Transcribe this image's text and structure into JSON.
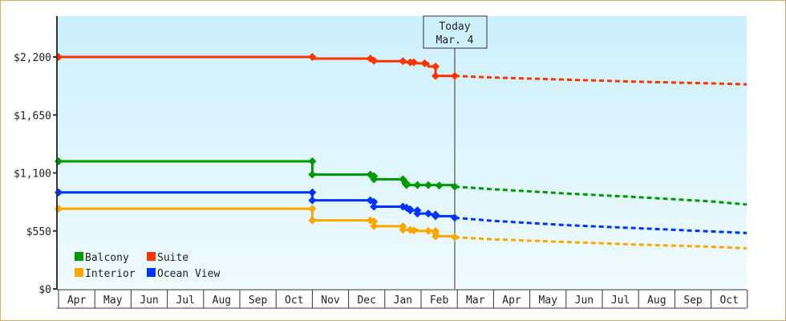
{
  "chart_data": {
    "type": "line",
    "title": "",
    "xlabel": "",
    "ylabel": "",
    "ylim": [
      0,
      2420
    ],
    "yticks": [
      {
        "value": 0,
        "label": "$0"
      },
      {
        "value": 550,
        "label": "$550"
      },
      {
        "value": 1100,
        "label": "$1,100"
      },
      {
        "value": 1650,
        "label": "$1,650"
      },
      {
        "value": 2200,
        "label": "$2,200"
      }
    ],
    "x_months": [
      "Apr",
      "May",
      "Jun",
      "Jul",
      "Aug",
      "Sep",
      "Oct",
      "Nov",
      "Dec",
      "Jan",
      "Feb",
      "Mar",
      "Apr",
      "May",
      "Jun",
      "Jul",
      "Aug",
      "Sep",
      "Oct"
    ],
    "today_marker": {
      "line1": "Today",
      "line2": "Mar. 4",
      "x_month_index": 10.7
    },
    "legend": [
      {
        "name": "Balcony",
        "color": "#009900"
      },
      {
        "name": "Suite",
        "color": "#ff3300"
      },
      {
        "name": "Interior",
        "color": "#ffa500"
      },
      {
        "name": "Ocean View",
        "color": "#0033ff"
      }
    ],
    "series": [
      {
        "name": "Suite",
        "color": "#ff3300",
        "history": [
          [
            0,
            2200
          ],
          [
            7.0,
            2200
          ],
          [
            7.0,
            2185
          ],
          [
            8.6,
            2185
          ],
          [
            8.6,
            2165
          ],
          [
            8.7,
            2165
          ],
          [
            8.7,
            2160
          ],
          [
            9.5,
            2160
          ],
          [
            9.5,
            2150
          ],
          [
            9.8,
            2150
          ],
          [
            9.8,
            2140
          ],
          [
            10.2,
            2140
          ],
          [
            10.2,
            2110
          ],
          [
            10.4,
            2110
          ],
          [
            10.4,
            2020
          ],
          [
            10.7,
            2020
          ]
        ],
        "points": [
          [
            0,
            2200
          ],
          [
            7.0,
            2200
          ],
          [
            8.6,
            2185
          ],
          [
            8.7,
            2165
          ],
          [
            9.5,
            2160
          ],
          [
            9.7,
            2150
          ],
          [
            9.8,
            2150
          ],
          [
            10.1,
            2140
          ],
          [
            10.4,
            2110
          ],
          [
            10.4,
            2020
          ],
          [
            10.7,
            2020
          ]
        ],
        "projection": [
          [
            10.7,
            2020
          ],
          [
            12,
            2005
          ],
          [
            14,
            1985
          ],
          [
            16,
            1965
          ],
          [
            18,
            1950
          ],
          [
            19.1,
            1940
          ]
        ]
      },
      {
        "name": "Balcony",
        "color": "#009900",
        "history": [
          [
            0,
            1210
          ],
          [
            7.0,
            1210
          ],
          [
            7.0,
            1085
          ],
          [
            8.6,
            1085
          ],
          [
            8.6,
            1070
          ],
          [
            8.7,
            1070
          ],
          [
            8.7,
            1040
          ],
          [
            9.5,
            1040
          ],
          [
            9.5,
            1000
          ],
          [
            9.6,
            1000
          ],
          [
            9.6,
            985
          ],
          [
            10.7,
            985
          ],
          [
            10.7,
            970
          ]
        ],
        "points": [
          [
            0,
            1210
          ],
          [
            7.0,
            1210
          ],
          [
            7.0,
            1085
          ],
          [
            8.6,
            1085
          ],
          [
            8.7,
            1070
          ],
          [
            8.7,
            1040
          ],
          [
            9.5,
            1040
          ],
          [
            9.6,
            1000
          ],
          [
            9.6,
            985
          ],
          [
            9.9,
            985
          ],
          [
            10.2,
            985
          ],
          [
            10.5,
            980
          ],
          [
            10.7,
            970
          ]
        ],
        "projection": [
          [
            10.7,
            970
          ],
          [
            12,
            945
          ],
          [
            14,
            905
          ],
          [
            16,
            870
          ],
          [
            18,
            830
          ],
          [
            19.1,
            800
          ]
        ]
      },
      {
        "name": "Ocean View",
        "color": "#0033ff",
        "history": [
          [
            0,
            915
          ],
          [
            7.0,
            915
          ],
          [
            7.0,
            840
          ],
          [
            8.6,
            840
          ],
          [
            8.6,
            825
          ],
          [
            8.7,
            825
          ],
          [
            8.7,
            780
          ],
          [
            9.5,
            780
          ],
          [
            9.5,
            770
          ],
          [
            9.7,
            770
          ],
          [
            9.7,
            745
          ],
          [
            9.9,
            745
          ],
          [
            9.9,
            715
          ],
          [
            10.2,
            715
          ],
          [
            10.2,
            705
          ],
          [
            10.4,
            705
          ],
          [
            10.4,
            690
          ],
          [
            10.7,
            690
          ],
          [
            10.7,
            675
          ]
        ],
        "points": [
          [
            0,
            915
          ],
          [
            7.0,
            915
          ],
          [
            7.0,
            840
          ],
          [
            8.6,
            840
          ],
          [
            8.7,
            825
          ],
          [
            8.7,
            780
          ],
          [
            9.5,
            780
          ],
          [
            9.6,
            770
          ],
          [
            9.7,
            755
          ],
          [
            9.7,
            745
          ],
          [
            9.9,
            745
          ],
          [
            9.9,
            715
          ],
          [
            10.2,
            715
          ],
          [
            10.4,
            705
          ],
          [
            10.4,
            690
          ],
          [
            10.7,
            675
          ]
        ],
        "projection": [
          [
            10.7,
            675
          ],
          [
            12,
            645
          ],
          [
            14,
            605
          ],
          [
            16,
            575
          ],
          [
            18,
            545
          ],
          [
            19.1,
            530
          ]
        ]
      },
      {
        "name": "Interior",
        "color": "#ffa500",
        "history": [
          [
            0,
            760
          ],
          [
            7.0,
            760
          ],
          [
            7.0,
            650
          ],
          [
            8.6,
            650
          ],
          [
            8.6,
            640
          ],
          [
            8.7,
            640
          ],
          [
            8.7,
            595
          ],
          [
            9.5,
            595
          ],
          [
            9.5,
            560
          ],
          [
            9.9,
            560
          ],
          [
            9.9,
            550
          ],
          [
            10.4,
            550
          ],
          [
            10.4,
            530
          ],
          [
            10.4,
            500
          ],
          [
            10.7,
            500
          ],
          [
            10.7,
            490
          ]
        ],
        "points": [
          [
            0,
            760
          ],
          [
            7.0,
            760
          ],
          [
            7.0,
            650
          ],
          [
            8.6,
            650
          ],
          [
            8.7,
            640
          ],
          [
            8.7,
            595
          ],
          [
            9.5,
            595
          ],
          [
            9.5,
            560
          ],
          [
            9.7,
            560
          ],
          [
            9.8,
            555
          ],
          [
            10.2,
            550
          ],
          [
            10.4,
            550
          ],
          [
            10.4,
            530
          ],
          [
            10.4,
            500
          ],
          [
            10.7,
            490
          ]
        ],
        "projection": [
          [
            10.7,
            490
          ],
          [
            12,
            470
          ],
          [
            14,
            445
          ],
          [
            16,
            420
          ],
          [
            18,
            400
          ],
          [
            19.1,
            385
          ]
        ]
      }
    ]
  }
}
